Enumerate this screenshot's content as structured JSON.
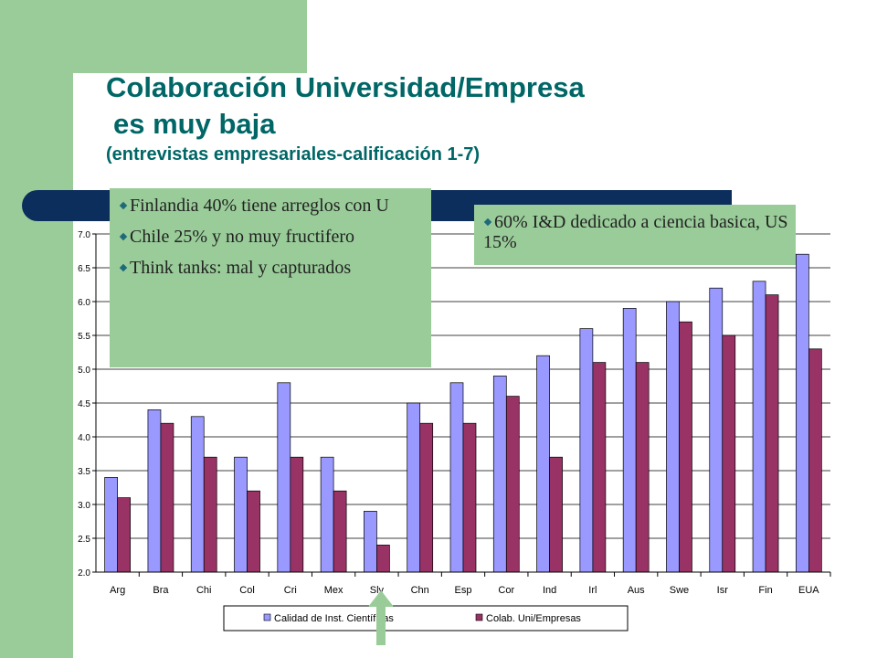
{
  "slide": {
    "title_line1": "Colaboración Universidad/Empresa",
    "title_line2": "es muy baja",
    "title_line3": "(entrevistas empresariales-calificación 1-7)"
  },
  "callouts": {
    "left": [
      "Finlandia 40% tiene arreglos con U",
      "Chile 25% y no  muy fructifero",
      "Think tanks: mal y capturados"
    ],
    "right": [
      "60% I&D dedicado a ciencia basica, US 15%"
    ]
  },
  "colors": {
    "series1": "#9999ff",
    "series2": "#993366",
    "green": "#99cc99",
    "navy": "#0b2e5c",
    "title": "#006666"
  },
  "icons": {
    "bullet": "diamond-bullet-icon",
    "arrow": "up-arrow-icon"
  },
  "chart_data": {
    "type": "bar",
    "categories": [
      "Arg",
      "Bra",
      "Chi",
      "Col",
      "Cri",
      "Mex",
      "Slv",
      "Chn",
      "Esp",
      "Cor",
      "Ind",
      "Irl",
      "Aus",
      "Swe",
      "Isr",
      "Fin",
      "EUA"
    ],
    "series": [
      {
        "name": "Calidad de Inst. Científicas",
        "values": [
          3.4,
          4.4,
          4.3,
          3.7,
          4.8,
          3.7,
          2.9,
          4.5,
          4.8,
          4.9,
          5.2,
          5.6,
          5.9,
          6.0,
          6.2,
          6.3,
          6.7
        ]
      },
      {
        "name": "Colab. Uni/Empresas",
        "values": [
          3.1,
          4.2,
          3.7,
          3.2,
          3.7,
          3.2,
          2.4,
          4.2,
          4.2,
          4.6,
          3.7,
          5.1,
          5.1,
          5.7,
          5.5,
          6.1,
          5.3
        ]
      }
    ],
    "ylim": [
      2.0,
      7.0
    ],
    "yticks": [
      "2.0",
      "2.5",
      "3.0",
      "3.5",
      "4.0",
      "4.5",
      "5.0",
      "5.5",
      "6.0",
      "6.5",
      "7.0"
    ],
    "grid": true,
    "legend": "bottom"
  }
}
